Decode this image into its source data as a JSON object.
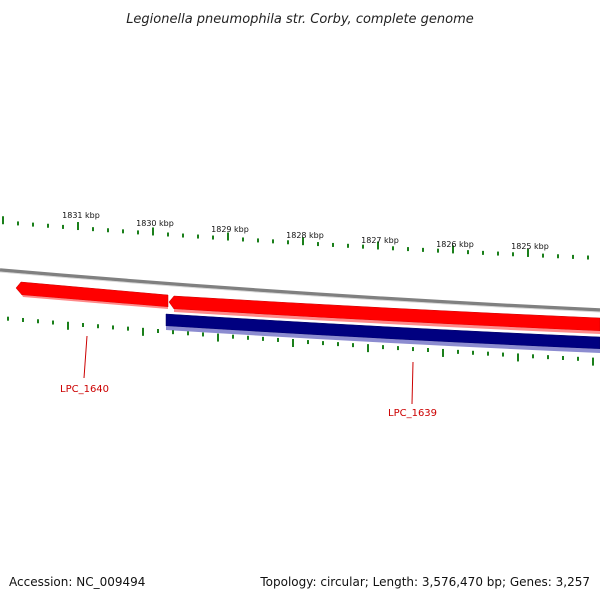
{
  "title": "Legionella pneumophila str. Corby, complete genome",
  "footer": {
    "accession": "Accession: NC_009494",
    "summary": "Topology: circular; Length: 3,576,470 bp; Genes: 3,257"
  },
  "scale_labels": [
    "1831 kbp",
    "1830 kbp",
    "1829 kbp",
    "1828 kbp",
    "1827 kbp",
    "1826 kbp",
    "1825 kbp"
  ],
  "genes": [
    {
      "label": "LPC_1640",
      "strand": "forward",
      "color": "#ff0000"
    },
    {
      "label": "LPC_1639",
      "strand": "forward",
      "color": "#ff0000"
    },
    {
      "label": "",
      "strand": "reverse",
      "color": "#000080"
    }
  ],
  "colors": {
    "backbone": "#808080",
    "tick": "#1a7f1a",
    "gene_label": "#cc0000"
  }
}
